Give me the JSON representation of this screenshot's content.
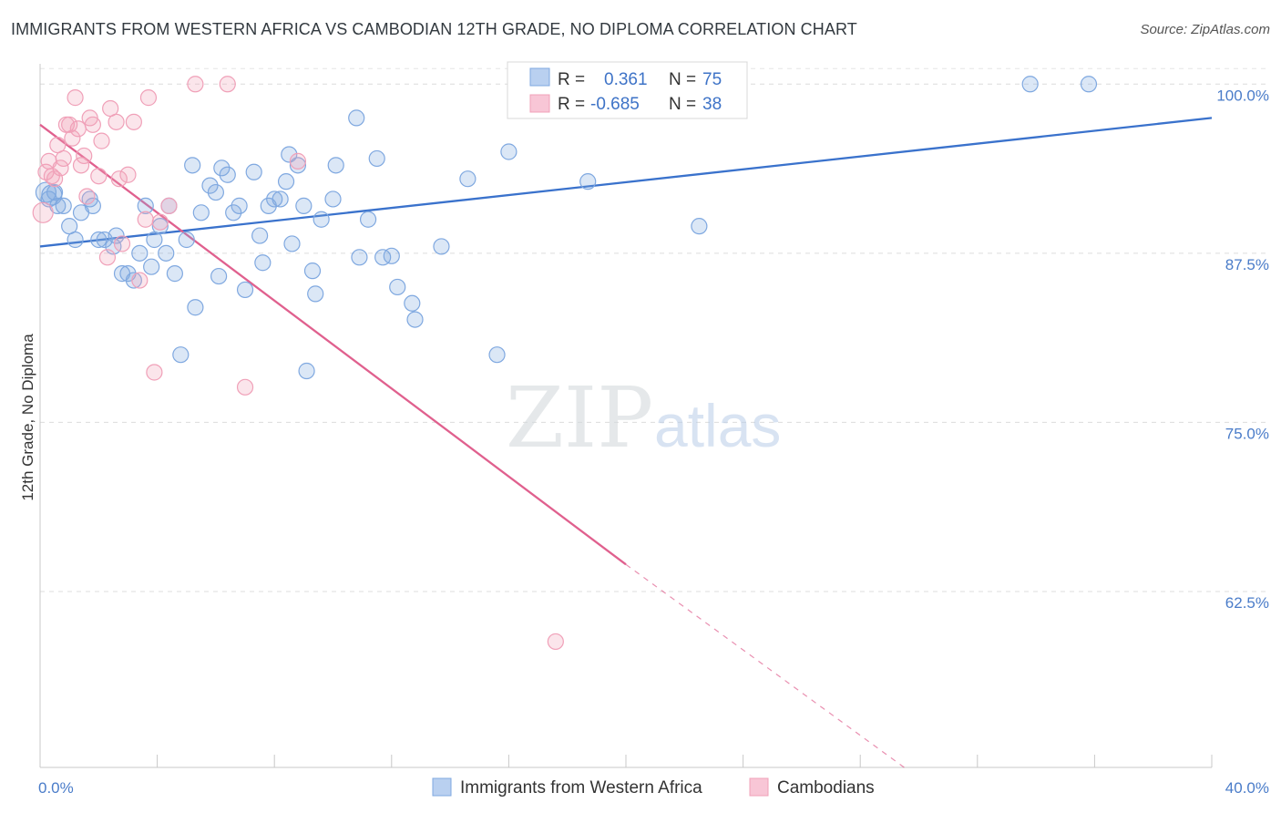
{
  "title": "IMMIGRANTS FROM WESTERN AFRICA VS CAMBODIAN 12TH GRADE, NO DIPLOMA CORRELATION CHART",
  "source": "Source: ZipAtlas.com",
  "watermark": {
    "zip": "ZIP",
    "atlas": "atlas"
  },
  "legend_box": {
    "rows": [
      {
        "r_label": "R =",
        "r_value": "0.361",
        "n_label": "N =",
        "n_value": "75",
        "color": "#7fa8e0"
      },
      {
        "r_label": "R =",
        "r_value": "-0.685",
        "n_label": "N =",
        "n_value": "38",
        "color": "#f0a0b8"
      }
    ]
  },
  "bottom_legend": [
    {
      "label": "Immigrants from Western Africa",
      "color": "#7fa8e0"
    },
    {
      "label": "Cambodians",
      "color": "#f0a0b8"
    }
  ],
  "chart_data": {
    "type": "scatter",
    "xlabel": "",
    "ylabel": "12th Grade, No Diploma",
    "xlim": [
      0,
      40
    ],
    "ylim": [
      49.5,
      101.5
    ],
    "x_tick_labels": [
      "0.0%",
      "40.0%"
    ],
    "y_ticks": [
      62.5,
      75.0,
      87.5,
      100.0
    ],
    "y_tick_labels": [
      "62.5%",
      "75.0%",
      "87.5%",
      "100.0%"
    ],
    "grid": true,
    "series": [
      {
        "name": "Immigrants from Western Africa",
        "color": "#7fa8e0",
        "trend": {
          "x": [
            0,
            40
          ],
          "y": [
            88.0,
            97.5
          ],
          "color": "#3a72cc"
        },
        "points": [
          [
            0.3,
            91.5
          ],
          [
            0.5,
            92.0
          ],
          [
            0.6,
            91.0
          ],
          [
            0.8,
            91.0
          ],
          [
            1.0,
            89.5
          ],
          [
            1.2,
            88.5
          ],
          [
            1.4,
            90.5
          ],
          [
            1.7,
            91.5
          ],
          [
            1.8,
            91.0
          ],
          [
            2.0,
            88.5
          ],
          [
            2.2,
            88.5
          ],
          [
            2.5,
            88.0
          ],
          [
            2.6,
            88.8
          ],
          [
            2.8,
            86.0
          ],
          [
            3.0,
            86.0
          ],
          [
            3.2,
            85.5
          ],
          [
            3.4,
            87.5
          ],
          [
            3.6,
            91.0
          ],
          [
            3.8,
            86.5
          ],
          [
            3.9,
            88.5
          ],
          [
            4.1,
            89.5
          ],
          [
            4.3,
            87.5
          ],
          [
            4.4,
            91.0
          ],
          [
            4.6,
            86.0
          ],
          [
            4.8,
            80.0
          ],
          [
            5.0,
            88.5
          ],
          [
            5.2,
            94.0
          ],
          [
            5.3,
            83.5
          ],
          [
            5.5,
            90.5
          ],
          [
            5.8,
            92.5
          ],
          [
            6.0,
            92.0
          ],
          [
            6.1,
            85.8
          ],
          [
            6.2,
            93.8
          ],
          [
            6.4,
            93.3
          ],
          [
            6.6,
            90.5
          ],
          [
            6.8,
            91.0
          ],
          [
            7.0,
            84.8
          ],
          [
            7.3,
            93.5
          ],
          [
            7.5,
            88.8
          ],
          [
            7.6,
            86.8
          ],
          [
            7.8,
            91.0
          ],
          [
            8.0,
            91.5
          ],
          [
            8.2,
            91.5
          ],
          [
            8.4,
            92.8
          ],
          [
            8.5,
            94.8
          ],
          [
            8.6,
            88.2
          ],
          [
            8.8,
            94.0
          ],
          [
            9.0,
            91.0
          ],
          [
            9.1,
            78.8
          ],
          [
            9.3,
            86.2
          ],
          [
            9.4,
            84.5
          ],
          [
            9.6,
            90.0
          ],
          [
            10.0,
            91.5
          ],
          [
            10.1,
            94.0
          ],
          [
            10.8,
            97.5
          ],
          [
            10.9,
            87.2
          ],
          [
            11.2,
            90.0
          ],
          [
            11.5,
            94.5
          ],
          [
            11.7,
            87.2
          ],
          [
            12.0,
            87.3
          ],
          [
            12.2,
            85.0
          ],
          [
            12.7,
            83.8
          ],
          [
            12.8,
            82.6
          ],
          [
            13.7,
            88.0
          ],
          [
            14.6,
            93.0
          ],
          [
            15.6,
            80.0
          ],
          [
            16.0,
            95.0
          ],
          [
            16.6,
            100.0
          ],
          [
            17.2,
            100.0
          ],
          [
            18.7,
            92.8
          ],
          [
            22.5,
            89.5
          ],
          [
            33.8,
            100.0
          ],
          [
            35.8,
            100.0
          ],
          [
            0.2,
            92.0
          ],
          [
            0.4,
            91.8
          ]
        ]
      },
      {
        "name": "Cambodians",
        "color": "#f0a0b8",
        "trend": {
          "x": [
            0,
            20
          ],
          "y": [
            97.0,
            64.5
          ],
          "dash_to": [
            29.5,
            49.5
          ],
          "color": "#e0608e"
        },
        "points": [
          [
            0.1,
            90.5
          ],
          [
            0.2,
            93.5
          ],
          [
            0.3,
            94.3
          ],
          [
            0.4,
            93.2
          ],
          [
            0.5,
            93.0
          ],
          [
            0.6,
            95.5
          ],
          [
            0.7,
            93.8
          ],
          [
            0.8,
            94.5
          ],
          [
            0.9,
            97.0
          ],
          [
            1.0,
            97.0
          ],
          [
            1.1,
            96.0
          ],
          [
            1.2,
            99.0
          ],
          [
            1.3,
            96.7
          ],
          [
            1.4,
            94.0
          ],
          [
            1.5,
            94.7
          ],
          [
            1.6,
            91.7
          ],
          [
            1.7,
            97.5
          ],
          [
            1.8,
            97.0
          ],
          [
            2.0,
            93.2
          ],
          [
            2.1,
            95.8
          ],
          [
            2.3,
            87.2
          ],
          [
            2.4,
            98.2
          ],
          [
            2.6,
            97.2
          ],
          [
            2.7,
            93.0
          ],
          [
            2.8,
            88.2
          ],
          [
            3.0,
            93.3
          ],
          [
            3.2,
            97.2
          ],
          [
            3.4,
            85.5
          ],
          [
            3.6,
            90.0
          ],
          [
            3.7,
            99.0
          ],
          [
            3.9,
            78.7
          ],
          [
            4.1,
            89.8
          ],
          [
            4.4,
            91.0
          ],
          [
            5.3,
            100.0
          ],
          [
            6.4,
            100.0
          ],
          [
            7.0,
            77.6
          ],
          [
            8.8,
            94.3
          ],
          [
            17.6,
            58.8
          ]
        ]
      }
    ]
  }
}
